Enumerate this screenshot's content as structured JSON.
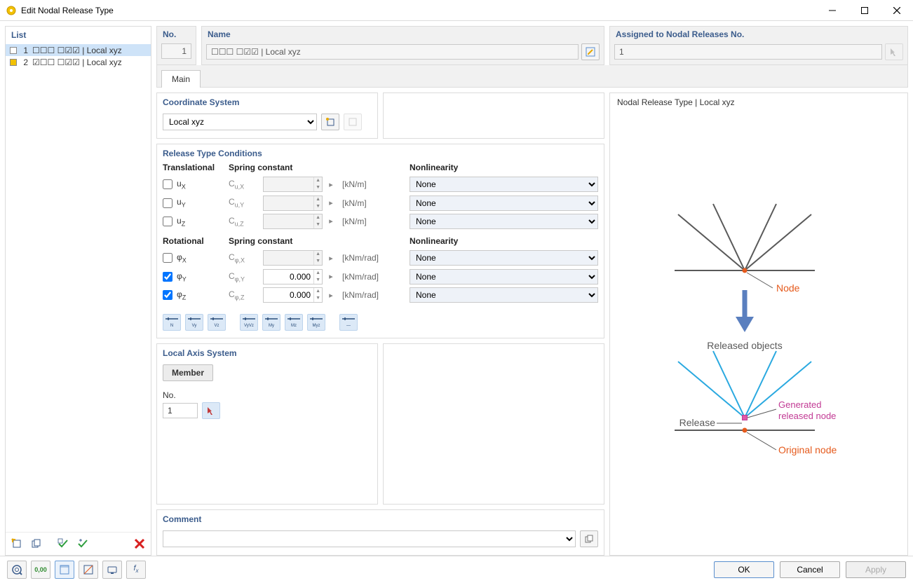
{
  "window": {
    "title": "Edit Nodal Release Type"
  },
  "list": {
    "title": "List",
    "items": [
      {
        "no": "1",
        "label": "☐☐☐ ☐☑☑ | Local xyz",
        "swatch": "#ffffff",
        "selected": true
      },
      {
        "no": "2",
        "label": "☑☐☐ ☐☑☑ | Local xyz",
        "swatch": "#f2c100",
        "selected": false
      }
    ],
    "toolbar": {
      "new": "New",
      "copy": "Copy",
      "check_on": "Select released",
      "check_assign": "Assign",
      "delete": "Delete"
    }
  },
  "header": {
    "no_label": "No.",
    "no_value": "1",
    "name_label": "Name",
    "name_value": "☐☐☐ ☐☑☑ | Local xyz",
    "assigned_label": "Assigned to Nodal Releases No.",
    "assigned_value": "1"
  },
  "tabs": {
    "main": "Main"
  },
  "coord": {
    "title": "Coordinate System",
    "value": "Local xyz"
  },
  "release": {
    "title": "Release Type Conditions",
    "trans_head": "Translational",
    "rot_head": "Rotational",
    "spring_head": "Spring constant",
    "nonlin_head": "Nonlinearity",
    "none": "None",
    "unit_lin": "[kN/m]",
    "unit_rot": "[kNm/rad]",
    "rows_trans": [
      {
        "sym": "u",
        "sub": "X",
        "c_sym": "C",
        "c_sub": "u,X",
        "checked": false,
        "val": "",
        "nl": "None"
      },
      {
        "sym": "u",
        "sub": "Y",
        "c_sym": "C",
        "c_sub": "u,Y",
        "checked": false,
        "val": "",
        "nl": "None"
      },
      {
        "sym": "u",
        "sub": "Z",
        "c_sym": "C",
        "c_sub": "u,Z",
        "checked": false,
        "val": "",
        "nl": "None"
      }
    ],
    "rows_rot": [
      {
        "sym": "φ",
        "sub": "X",
        "c_sym": "C",
        "c_sub": "φ,X",
        "checked": false,
        "val": "",
        "nl": "None"
      },
      {
        "sym": "φ",
        "sub": "Y",
        "c_sym": "C",
        "c_sub": "φ,Y",
        "checked": true,
        "val": "0.000",
        "nl": "None"
      },
      {
        "sym": "φ",
        "sub": "Z",
        "c_sym": "C",
        "c_sub": "φ,Z",
        "checked": true,
        "val": "0.000",
        "nl": "None"
      }
    ],
    "presets": [
      "N",
      "Vy",
      "Vz",
      "VyVz",
      "My",
      "Mz",
      "Myz",
      "—"
    ]
  },
  "axis": {
    "title": "Local Axis System",
    "member_btn": "Member",
    "no_label": "No.",
    "no_value": "1"
  },
  "comment": {
    "title": "Comment",
    "value": ""
  },
  "preview": {
    "title": "Nodal Release Type | Local xyz",
    "labels": {
      "node": "Node",
      "released_objects": "Released objects",
      "generated": "Generated released node",
      "release": "Release",
      "original": "Original node"
    },
    "colors": {
      "gray": "#595959",
      "blue": "#2aa9e0",
      "arrow": "#5a7fbf",
      "node_color": "#e55a1c",
      "gen_color": "#c23a94",
      "gen_fill": "#e05aa8"
    }
  },
  "footer": {
    "ok": "OK",
    "cancel": "Cancel",
    "apply": "Apply"
  }
}
